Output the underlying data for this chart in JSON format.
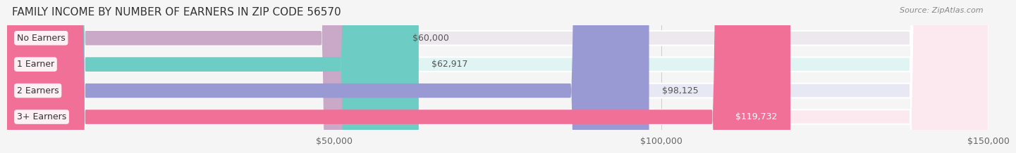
{
  "title": "FAMILY INCOME BY NUMBER OF EARNERS IN ZIP CODE 56570",
  "source": "Source: ZipAtlas.com",
  "categories": [
    "No Earners",
    "1 Earner",
    "2 Earners",
    "3+ Earners"
  ],
  "values": [
    60000,
    62917,
    98125,
    119732
  ],
  "labels": [
    "$60,000",
    "$62,917",
    "$98,125",
    "$119,732"
  ],
  "bar_colors": [
    "#c9a8c8",
    "#6dcdc4",
    "#9999d4",
    "#f07098"
  ],
  "bar_bg_colors": [
    "#ede8ed",
    "#e0f5f3",
    "#e8e8f4",
    "#fce8ef"
  ],
  "xlim": [
    0,
    150000
  ],
  "xticks": [
    50000,
    100000,
    150000
  ],
  "xtick_labels": [
    "$50,000",
    "$100,000",
    "$150,000"
  ],
  "background_color": "#f5f5f5",
  "bar_background_color": "#efefef",
  "title_fontsize": 11,
  "label_fontsize": 9,
  "source_fontsize": 8,
  "bar_height": 0.55,
  "value_inside_threshold": 100000
}
